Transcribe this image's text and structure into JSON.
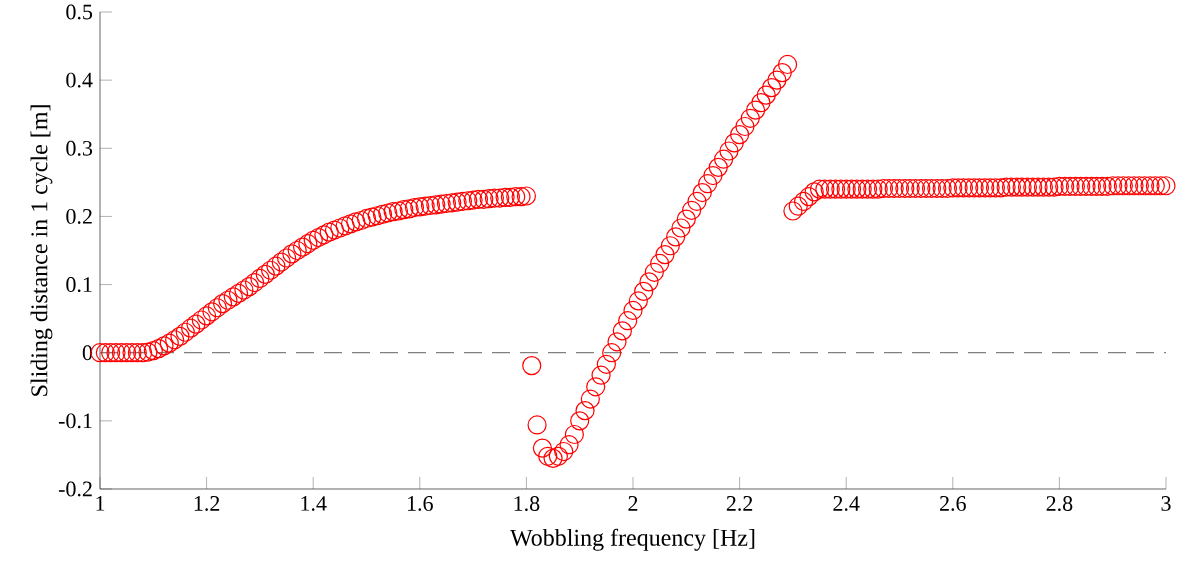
{
  "chart_data": {
    "type": "scatter",
    "xlabel": "Wobbling frequency [Hz]",
    "ylabel": "Sliding distance in 1 cycle [m]",
    "xlim": [
      1,
      3
    ],
    "ylim": [
      -0.2,
      0.5
    ],
    "xticks": [
      1,
      1.2,
      1.4,
      1.6,
      1.8,
      2,
      2.2,
      2.4,
      2.6,
      2.8,
      3
    ],
    "yticks": [
      -0.2,
      -0.1,
      0,
      0.1,
      0.2,
      0.3,
      0.4,
      0.5
    ],
    "marker": "circle",
    "grid": false,
    "ref_lines": [
      {
        "axis": "y",
        "value": 0,
        "color": "#808080",
        "line_style": "dashed"
      }
    ],
    "x": [
      1.0,
      1.01,
      1.02,
      1.03,
      1.04,
      1.05,
      1.06,
      1.07,
      1.08,
      1.09,
      1.1,
      1.11,
      1.12,
      1.13,
      1.14,
      1.15,
      1.16,
      1.17,
      1.18,
      1.19,
      1.2,
      1.21,
      1.22,
      1.23,
      1.24,
      1.25,
      1.26,
      1.27,
      1.28,
      1.29,
      1.3,
      1.31,
      1.32,
      1.33,
      1.34,
      1.35,
      1.36,
      1.37,
      1.38,
      1.39,
      1.4,
      1.41,
      1.42,
      1.43,
      1.44,
      1.45,
      1.46,
      1.47,
      1.48,
      1.49,
      1.5,
      1.51,
      1.52,
      1.53,
      1.54,
      1.55,
      1.56,
      1.57,
      1.58,
      1.59,
      1.6,
      1.61,
      1.62,
      1.63,
      1.64,
      1.65,
      1.66,
      1.67,
      1.68,
      1.69,
      1.7,
      1.71,
      1.72,
      1.73,
      1.74,
      1.75,
      1.76,
      1.77,
      1.78,
      1.79,
      1.8,
      1.81,
      1.82,
      1.83,
      1.84,
      1.85,
      1.86,
      1.87,
      1.88,
      1.89,
      1.9,
      1.91,
      1.92,
      1.93,
      1.94,
      1.95,
      1.96,
      1.97,
      1.98,
      1.99,
      2.0,
      2.01,
      2.02,
      2.03,
      2.04,
      2.05,
      2.06,
      2.07,
      2.08,
      2.09,
      2.1,
      2.11,
      2.12,
      2.13,
      2.14,
      2.15,
      2.16,
      2.17,
      2.18,
      2.19,
      2.2,
      2.21,
      2.22,
      2.23,
      2.24,
      2.25,
      2.26,
      2.27,
      2.28,
      2.29,
      2.3,
      2.31,
      2.32,
      2.33,
      2.34,
      2.35,
      2.36,
      2.37,
      2.38,
      2.39,
      2.4,
      2.41,
      2.42,
      2.43,
      2.44,
      2.45,
      2.46,
      2.47,
      2.48,
      2.49,
      2.5,
      2.51,
      2.52,
      2.53,
      2.54,
      2.55,
      2.56,
      2.57,
      2.58,
      2.59,
      2.6,
      2.61,
      2.62,
      2.63,
      2.64,
      2.65,
      2.66,
      2.67,
      2.68,
      2.69,
      2.7,
      2.71,
      2.72,
      2.73,
      2.74,
      2.75,
      2.76,
      2.77,
      2.78,
      2.79,
      2.8,
      2.81,
      2.82,
      2.83,
      2.84,
      2.85,
      2.86,
      2.87,
      2.88,
      2.89,
      2.9,
      2.91,
      2.92,
      2.93,
      2.94,
      2.95,
      2.96,
      2.97,
      2.98,
      2.99,
      3.0
    ],
    "series": [
      {
        "color": "#ff0000",
        "values": [
          0,
          0,
          0,
          0,
          0,
          0,
          0,
          0,
          0,
          0.001,
          0.003,
          0.006,
          0.01,
          0.014,
          0.019,
          0.024,
          0.03,
          0.036,
          0.042,
          0.048,
          0.054,
          0.06,
          0.066,
          0.072,
          0.077,
          0.082,
          0.087,
          0.092,
          0.097,
          0.103,
          0.109,
          0.115,
          0.121,
          0.127,
          0.133,
          0.139,
          0.145,
          0.15,
          0.155,
          0.16,
          0.165,
          0.169,
          0.173,
          0.177,
          0.18,
          0.183,
          0.186,
          0.189,
          0.192,
          0.194,
          0.197,
          0.199,
          0.201,
          0.203,
          0.205,
          0.207,
          0.208,
          0.21,
          0.211,
          0.213,
          0.214,
          0.215,
          0.216,
          0.217,
          0.218,
          0.219,
          0.22,
          0.221,
          0.222,
          0.223,
          0.224,
          0.225,
          0.225,
          0.226,
          0.227,
          0.227,
          0.228,
          0.228,
          0.229,
          0.229,
          0.23,
          -0.019,
          -0.106,
          -0.14,
          -0.152,
          -0.155,
          -0.152,
          -0.145,
          -0.135,
          -0.12,
          -0.1,
          -0.085,
          -0.068,
          -0.05,
          -0.033,
          -0.017,
          0,
          0.016,
          0.032,
          0.047,
          0.062,
          0.076,
          0.09,
          0.104,
          0.118,
          0.131,
          0.144,
          0.157,
          0.17,
          0.183,
          0.196,
          0.209,
          0.222,
          0.235,
          0.248,
          0.26,
          0.272,
          0.284,
          0.296,
          0.308,
          0.32,
          0.332,
          0.344,
          0.356,
          0.367,
          0.378,
          0.389,
          0.4,
          0.411,
          0.423,
          0.208,
          0.215,
          0.222,
          0.229,
          0.236,
          0.24,
          0.24,
          0.24,
          0.24,
          0.24,
          0.24,
          0.24,
          0.24,
          0.24,
          0.24,
          0.24,
          0.24,
          0.241,
          0.241,
          0.241,
          0.241,
          0.241,
          0.241,
          0.241,
          0.241,
          0.241,
          0.241,
          0.241,
          0.241,
          0.241,
          0.242,
          0.242,
          0.242,
          0.242,
          0.242,
          0.242,
          0.242,
          0.242,
          0.242,
          0.242,
          0.243,
          0.243,
          0.243,
          0.243,
          0.243,
          0.243,
          0.243,
          0.243,
          0.243,
          0.243,
          0.244,
          0.244,
          0.244,
          0.244,
          0.244,
          0.244,
          0.244,
          0.244,
          0.244,
          0.244,
          0.245,
          0.245,
          0.245,
          0.245,
          0.245,
          0.245,
          0.245,
          0.245,
          0.245,
          0.245,
          0.245
        ]
      }
    ]
  }
}
